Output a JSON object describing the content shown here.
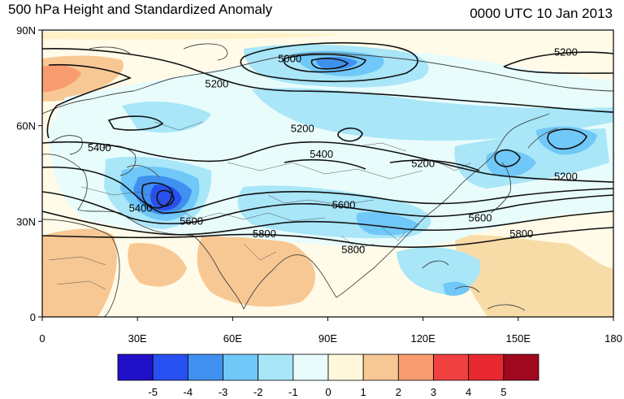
{
  "header": {
    "title_left": "500 hPa Height and Standardized Anomaly",
    "title_right": "0000 UTC 10 Jan 2013"
  },
  "axes": {
    "lat_labels": [
      "90N",
      "60N",
      "30N",
      "0"
    ],
    "lat_values": [
      90,
      60,
      30,
      0
    ],
    "lon_labels": [
      "0",
      "30E",
      "60E",
      "90E",
      "120E",
      "150E",
      "180"
    ],
    "lon_values": [
      0,
      30,
      60,
      90,
      120,
      150,
      180
    ],
    "lon_range": [
      0,
      180
    ],
    "lat_range": [
      0,
      90
    ]
  },
  "contours": {
    "unit": "gpm",
    "interval": 200,
    "labels": [
      {
        "text": "5000",
        "lon": 78,
        "lat": 81
      },
      {
        "text": "5200",
        "lon": 165,
        "lat": 83
      },
      {
        "text": "5200",
        "lon": 55,
        "lat": 73
      },
      {
        "text": "5200",
        "lon": 82,
        "lat": 59
      },
      {
        "text": "5200",
        "lon": 120,
        "lat": 48
      },
      {
        "text": "5200",
        "lon": 165,
        "lat": 44
      },
      {
        "text": "5400",
        "lon": 18,
        "lat": 53
      },
      {
        "text": "5400",
        "lon": 88,
        "lat": 51
      },
      {
        "text": "5400",
        "lon": 31,
        "lat": 34
      },
      {
        "text": "5600",
        "lon": 95,
        "lat": 35
      },
      {
        "text": "5600",
        "lon": 47,
        "lat": 30
      },
      {
        "text": "5600",
        "lon": 138,
        "lat": 31
      },
      {
        "text": "5800",
        "lon": 70,
        "lat": 26
      },
      {
        "text": "5800",
        "lon": 98,
        "lat": 21
      },
      {
        "text": "5800",
        "lon": 151,
        "lat": 26
      }
    ]
  },
  "chart_data": {
    "type": "heatmap",
    "title": "500 hPa Height and Standardized Anomaly",
    "subtitle": "0000 UTC 10 Jan 2013",
    "x": [
      0,
      30,
      60,
      90,
      120,
      150,
      180
    ],
    "xlim": [
      0,
      180
    ],
    "ylim": [
      0,
      90
    ],
    "color_levels": [
      -5,
      -4,
      -3,
      -2,
      -1,
      0,
      1,
      2,
      3,
      4,
      5
    ],
    "color_labels": [
      "-5",
      "-4",
      "-3",
      "-2",
      "-1",
      "0",
      "1",
      "2",
      "3",
      "4",
      "5"
    ],
    "palette": [
      "#2010c8",
      "#2850f0",
      "#4090f0",
      "#70c8f8",
      "#a8e6f8",
      "#e8fcfc",
      "#fff8dc",
      "#f8c894",
      "#f89c70",
      "#f04040",
      "#e82830",
      "#a00820"
    ]
  },
  "colors": {
    "ocean_base": "#fffbe8",
    "coast": "#444444",
    "contour": "#111111"
  }
}
